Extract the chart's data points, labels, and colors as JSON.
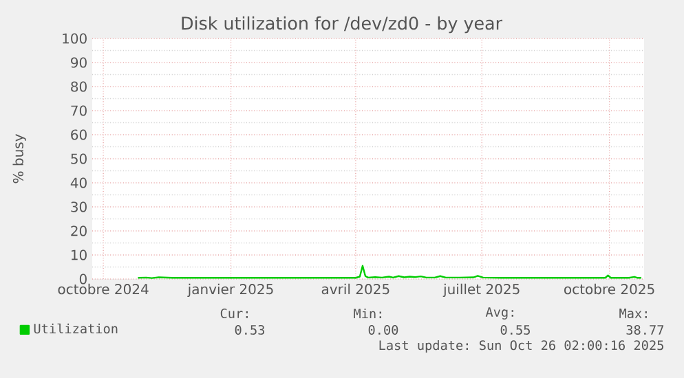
{
  "chart_data": {
    "type": "line",
    "title": "Disk utilization for /dev/zd0 - by year",
    "ylabel": "% busy",
    "xlim": [
      "2024-09-23",
      "2025-10-26"
    ],
    "xticks": [
      {
        "value": "2024-10-01",
        "label": "octobre 2024"
      },
      {
        "value": "2025-01-01",
        "label": "janvier 2025"
      },
      {
        "value": "2025-04-01",
        "label": "avril 2025"
      },
      {
        "value": "2025-07-01",
        "label": "juillet 2025"
      },
      {
        "value": "2025-10-01",
        "label": "octobre 2025"
      }
    ],
    "ylim": [
      0,
      100
    ],
    "yticks": [
      0,
      10,
      20,
      30,
      40,
      50,
      60,
      70,
      80,
      90,
      100
    ],
    "grid": true,
    "legend": "bottom left",
    "marker": "none",
    "line_style": "solid",
    "series": [
      {
        "name": "Utilization",
        "color": "#00cc00",
        "x": [
          "2024-10-26",
          "2024-11-01",
          "2024-11-05",
          "2024-11-10",
          "2024-11-20",
          "2024-12-01",
          "2024-12-15",
          "2025-01-01",
          "2025-01-15",
          "2025-02-01",
          "2025-02-15",
          "2025-03-01",
          "2025-03-15",
          "2025-04-01",
          "2025-04-04",
          "2025-04-06",
          "2025-04-08",
          "2025-04-10",
          "2025-04-15",
          "2025-04-20",
          "2025-04-25",
          "2025-04-28",
          "2025-05-02",
          "2025-05-06",
          "2025-05-10",
          "2025-05-14",
          "2025-05-18",
          "2025-05-22",
          "2025-05-28",
          "2025-06-01",
          "2025-06-05",
          "2025-06-15",
          "2025-06-25",
          "2025-06-28",
          "2025-07-02",
          "2025-07-15",
          "2025-08-01",
          "2025-08-15",
          "2025-09-01",
          "2025-09-15",
          "2025-09-28",
          "2025-09-30",
          "2025-10-02",
          "2025-10-15",
          "2025-10-19",
          "2025-10-21",
          "2025-10-24"
        ],
        "values": [
          0.5,
          0.6,
          0.4,
          0.7,
          0.5,
          0.5,
          0.5,
          0.5,
          0.5,
          0.5,
          0.5,
          0.5,
          0.5,
          0.5,
          1.0,
          5.5,
          1.2,
          0.6,
          0.8,
          0.6,
          1.0,
          0.6,
          1.2,
          0.7,
          1.0,
          0.8,
          1.1,
          0.6,
          0.6,
          1.2,
          0.6,
          0.6,
          0.7,
          1.3,
          0.6,
          0.5,
          0.5,
          0.5,
          0.5,
          0.5,
          0.5,
          1.5,
          0.5,
          0.5,
          0.9,
          0.5,
          0.5
        ]
      }
    ],
    "annotations": [
      "Cur:",
      "0.53",
      "Min:",
      "0.00",
      "Avg:",
      "0.55",
      "Max:",
      "38.77",
      "Last update: Sun Oct 26 02:00:16 2025"
    ]
  }
}
